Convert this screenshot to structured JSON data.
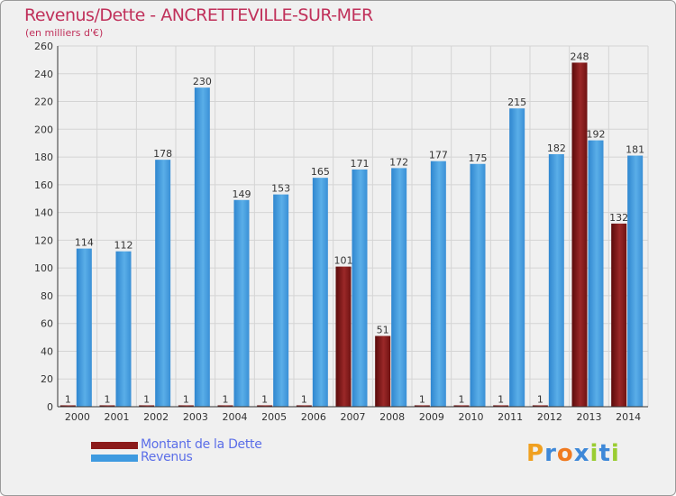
{
  "colors": {
    "title": "#c0305a",
    "dette": "#8b1a1a",
    "revenus": "#3e9ae0",
    "legend_text": "#5b6ee8",
    "background": "#f0f0f0"
  },
  "logo": {
    "letters": [
      "P",
      "r",
      "o",
      "x",
      "i",
      "t",
      "i"
    ],
    "colors": [
      "#f0a020",
      "#3e88d8",
      "#f07a20",
      "#3e88d8",
      "#9acd32",
      "#3e88d8",
      "#9acd32"
    ]
  },
  "chart_data": {
    "type": "bar",
    "title": "Revenus/Dette - ANCRETTEVILLE-SUR-MER",
    "subtitle": "(en milliers d'€)",
    "categories": [
      "2000",
      "2001",
      "2002",
      "2003",
      "2004",
      "2005",
      "2006",
      "2007",
      "2008",
      "2009",
      "2010",
      "2011",
      "2012",
      "2013",
      "2014"
    ],
    "series": [
      {
        "name": "Montant de la Dette",
        "color": "#8b1a1a",
        "values": [
          1,
          1,
          1,
          1,
          1,
          1,
          1,
          101,
          51,
          1,
          1,
          1,
          1,
          248,
          132
        ]
      },
      {
        "name": "Revenus",
        "color": "#3e9ae0",
        "values": [
          114,
          112,
          178,
          230,
          149,
          153,
          165,
          171,
          172,
          177,
          175,
          215,
          182,
          192,
          181
        ]
      }
    ],
    "ylim": [
      0,
      260
    ],
    "yticks": [
      0,
      20,
      40,
      60,
      80,
      100,
      120,
      140,
      160,
      180,
      200,
      220,
      240,
      260
    ],
    "grid": true,
    "legend": "bottom-left"
  }
}
